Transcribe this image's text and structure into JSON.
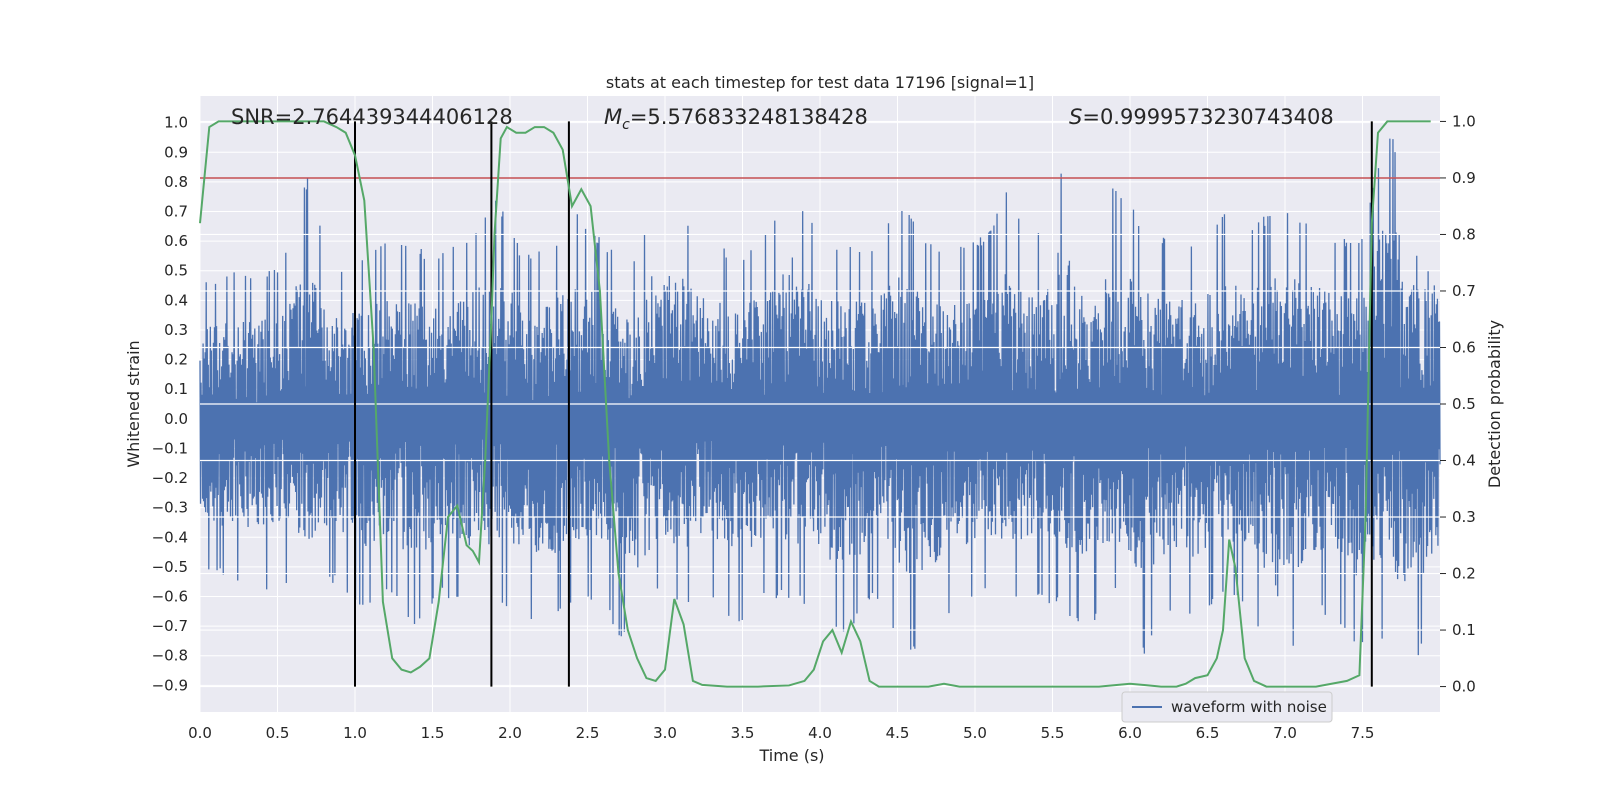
{
  "chart_data": {
    "type": "line",
    "title": "stats at each timestep for test data 17196 [signal=1]",
    "xlabel": "Time (s)",
    "ylabel": "Whitened strain",
    "ylabel_right": "Detection probability",
    "xlim": [
      0.0,
      8.0
    ],
    "ylim": [
      -0.99,
      1.09
    ],
    "ylim_right": [
      -0.045,
      1.045
    ],
    "x_ticks": [
      "0.0",
      "0.5",
      "1.0",
      "1.5",
      "2.0",
      "2.5",
      "3.0",
      "3.5",
      "4.0",
      "4.5",
      "5.0",
      "5.5",
      "6.0",
      "6.5",
      "7.0",
      "7.5"
    ],
    "y_ticks": [
      "−0.9",
      "−0.8",
      "−0.7",
      "−0.6",
      "−0.5",
      "−0.4",
      "−0.3",
      "−0.2",
      "−0.1",
      "0.0",
      "0.1",
      "0.2",
      "0.3",
      "0.4",
      "0.5",
      "0.6",
      "0.7",
      "0.8",
      "0.9",
      "1.0"
    ],
    "y_ticks_right": [
      "0.0",
      "0.1",
      "0.2",
      "0.3",
      "0.4",
      "0.5",
      "0.6",
      "0.7",
      "0.8",
      "0.9",
      "1.0"
    ],
    "grid": true,
    "legend_position": "lower-right",
    "annotations": {
      "snr": "SNR=2.764439344406128",
      "mc_symbol": "M",
      "mc_sub": "c",
      "mc_value": "=5.576833248138428",
      "s_symbol": "S",
      "s_value": "=0.9999573230743408"
    },
    "threshold_right": 0.9,
    "event_lines_x": [
      1.0,
      1.88,
      2.38,
      7.56
    ],
    "colors": {
      "waveform": "#4c72b0",
      "probability": "#55a868",
      "threshold": "#c44e52",
      "event_line": "#000000",
      "plot_bg": "#eaeaf2",
      "grid": "#ffffff"
    },
    "series": [
      {
        "name": "waveform with noise",
        "axis": "left",
        "envelope_top": [
          0.45,
          0.5,
          0.48,
          0.52,
          0.83,
          0.5,
          0.55,
          0.6,
          0.58,
          0.56,
          0.62,
          0.75,
          0.55,
          0.58,
          0.7,
          0.6,
          0.52,
          0.78,
          0.7,
          0.6,
          0.55,
          0.65,
          0.82,
          0.6,
          0.58,
          0.6,
          0.75,
          0.6,
          0.58,
          0.62,
          0.78,
          0.6,
          0.88,
          0.6,
          0.82,
          0.65,
          0.6,
          0.6,
          0.7,
          0.65,
          0.72,
          0.7,
          0.62,
          0.6,
          1.0,
          0.85,
          0.65
        ],
        "envelope_bottom": [
          -0.5,
          -0.55,
          -0.6,
          -0.55,
          -0.62,
          -0.55,
          -0.65,
          -0.6,
          -0.7,
          -0.6,
          -0.65,
          -0.62,
          -0.68,
          -0.7,
          -0.6,
          -0.65,
          -0.8,
          -0.6,
          -0.65,
          -0.62,
          -0.7,
          -0.6,
          -0.62,
          -0.68,
          -0.75,
          -0.6,
          -0.8,
          -0.78,
          -0.65,
          -0.6,
          -0.62,
          -0.6,
          -0.65,
          -0.72,
          -0.6,
          -0.8,
          -0.65,
          -0.7,
          -0.6,
          -0.65,
          -0.9,
          -0.7,
          -0.65,
          -0.8,
          -0.75,
          -0.88,
          -0.62
        ]
      },
      {
        "name": "",
        "axis": "right",
        "x": [
          0.0,
          0.06,
          0.12,
          0.2,
          0.3,
          0.4,
          0.5,
          0.6,
          0.7,
          0.8,
          0.88,
          0.94,
          1.0,
          1.06,
          1.12,
          1.18,
          1.24,
          1.3,
          1.36,
          1.42,
          1.48,
          1.54,
          1.6,
          1.66,
          1.72,
          1.76,
          1.8,
          1.84,
          1.88,
          1.9,
          1.94,
          1.98,
          2.04,
          2.1,
          2.16,
          2.22,
          2.28,
          2.34,
          2.4,
          2.46,
          2.52,
          2.58,
          2.64,
          2.7,
          2.76,
          2.82,
          2.88,
          2.94,
          3.0,
          3.06,
          3.12,
          3.18,
          3.24,
          3.4,
          3.6,
          3.8,
          3.9,
          3.96,
          4.02,
          4.08,
          4.14,
          4.2,
          4.26,
          4.32,
          4.38,
          4.44,
          4.5,
          4.7,
          4.8,
          4.9,
          5.2,
          5.4,
          5.6,
          5.8,
          6.0,
          6.2,
          6.3,
          6.36,
          6.42,
          6.5,
          6.56,
          6.6,
          6.64,
          6.68,
          6.74,
          6.8,
          6.88,
          6.96,
          7.04,
          7.2,
          7.4,
          7.48,
          7.52,
          7.56,
          7.6,
          7.66,
          7.74,
          7.82,
          7.94
        ],
        "values": [
          0.82,
          0.99,
          1.0,
          1.0,
          1.0,
          1.0,
          1.0,
          1.0,
          1.0,
          1.0,
          0.99,
          0.98,
          0.94,
          0.86,
          0.6,
          0.15,
          0.05,
          0.03,
          0.025,
          0.035,
          0.05,
          0.15,
          0.3,
          0.32,
          0.25,
          0.24,
          0.22,
          0.4,
          0.65,
          0.8,
          0.97,
          0.99,
          0.98,
          0.98,
          0.99,
          0.99,
          0.98,
          0.95,
          0.85,
          0.88,
          0.85,
          0.7,
          0.4,
          0.2,
          0.1,
          0.05,
          0.015,
          0.01,
          0.03,
          0.155,
          0.11,
          0.01,
          0.003,
          0.0,
          0.0,
          0.002,
          0.01,
          0.03,
          0.08,
          0.1,
          0.06,
          0.115,
          0.08,
          0.01,
          0.0,
          0.0,
          0.0,
          0.0,
          0.005,
          0.0,
          0.0,
          0.0,
          0.0,
          0.0,
          0.005,
          0.0,
          0.0,
          0.005,
          0.015,
          0.02,
          0.05,
          0.1,
          0.26,
          0.21,
          0.05,
          0.01,
          0.0,
          0.0,
          0.0,
          0.0,
          0.01,
          0.02,
          0.3,
          0.82,
          0.98,
          1.0,
          1.0,
          1.0,
          1.0
        ]
      }
    ],
    "legend": [
      {
        "label": "waveform with noise",
        "color": "#4c72b0"
      }
    ]
  }
}
